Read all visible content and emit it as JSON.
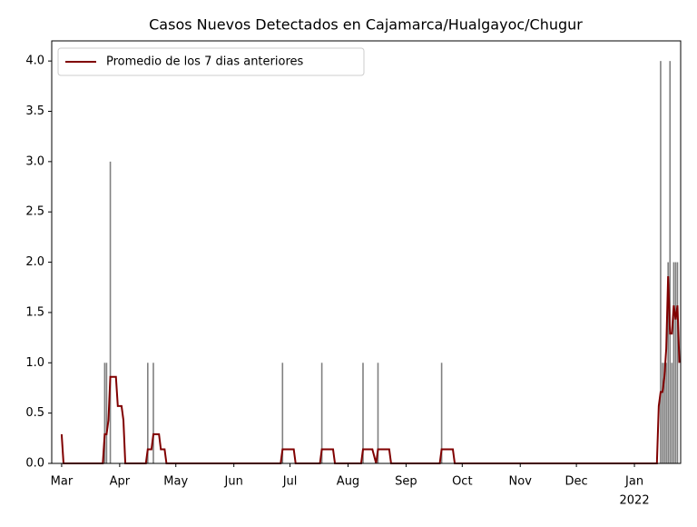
{
  "chart_data": {
    "type": "bar-line",
    "title": "Casos Nuevos Detectados en Cajamarca/Hualgayoc/Chugur",
    "xlim": [
      -5.3,
      330.7
    ],
    "xticks": [
      {
        "value": 0,
        "label": "Mar"
      },
      {
        "value": 31,
        "label": "Apr"
      },
      {
        "value": 61,
        "label": "May"
      },
      {
        "value": 92,
        "label": "Jun"
      },
      {
        "value": 122,
        "label": "Jul"
      },
      {
        "value": 153,
        "label": "Aug"
      },
      {
        "value": 184,
        "label": "Sep"
      },
      {
        "value": 214,
        "label": "Oct"
      },
      {
        "value": 245,
        "label": "Nov"
      },
      {
        "value": 275,
        "label": "Dec"
      },
      {
        "value": 306,
        "label": "Jan"
      }
    ],
    "x_year_label": "2022",
    "ylim": [
      0,
      4.2
    ],
    "yticks": [
      {
        "value": 0,
        "label": "0.0"
      },
      {
        "value": 0.5,
        "label": "0.5"
      },
      {
        "value": 1,
        "label": "1.0"
      },
      {
        "value": 1.5,
        "label": "1.5"
      },
      {
        "value": 2,
        "label": "2.0"
      },
      {
        "value": 2.5,
        "label": "2.5"
      },
      {
        "value": 3,
        "label": "3.0"
      },
      {
        "value": 3.5,
        "label": "3.5"
      },
      {
        "value": 4,
        "label": "4.0"
      }
    ],
    "legend": "upper left",
    "bars": {
      "color": "#808080",
      "x": [
        23,
        24,
        26,
        46,
        49,
        118,
        139,
        161,
        169,
        203,
        320,
        321,
        322,
        323,
        324,
        325,
        326,
        327,
        328,
        329
      ],
      "values": [
        1,
        1,
        3,
        1,
        1,
        1,
        1,
        1,
        1,
        1,
        4,
        1,
        1,
        1,
        2,
        4,
        1,
        2,
        2,
        2
      ]
    },
    "series": [
      {
        "name": "Promedio de los 7 dias anteriores",
        "color": "#800000",
        "x": [
          0,
          1,
          22,
          23,
          24,
          25,
          26,
          29,
          30,
          32,
          33,
          34,
          45,
          46,
          48,
          49,
          52,
          53,
          55,
          56,
          117,
          118,
          124,
          125,
          138,
          139,
          145,
          146,
          160,
          161,
          166,
          168,
          169,
          175,
          176,
          202,
          203,
          209,
          210,
          318,
          319,
          320,
          321,
          322,
          323,
          324,
          325,
          326,
          327,
          328,
          329,
          330
        ],
        "values": [
          0.29,
          0,
          0,
          0.29,
          0.29,
          0.43,
          0.86,
          0.86,
          0.57,
          0.57,
          0.43,
          0,
          0,
          0.14,
          0.14,
          0.29,
          0.29,
          0.14,
          0.14,
          0,
          0,
          0.14,
          0.14,
          0,
          0,
          0.14,
          0.14,
          0,
          0,
          0.14,
          0.14,
          0,
          0.14,
          0.14,
          0,
          0,
          0.14,
          0.14,
          0,
          0,
          0.57,
          0.71,
          0.71,
          0.86,
          1.14,
          1.86,
          1.29,
          1.29,
          1.57,
          1.43,
          1.57,
          1.0
        ]
      }
    ]
  }
}
